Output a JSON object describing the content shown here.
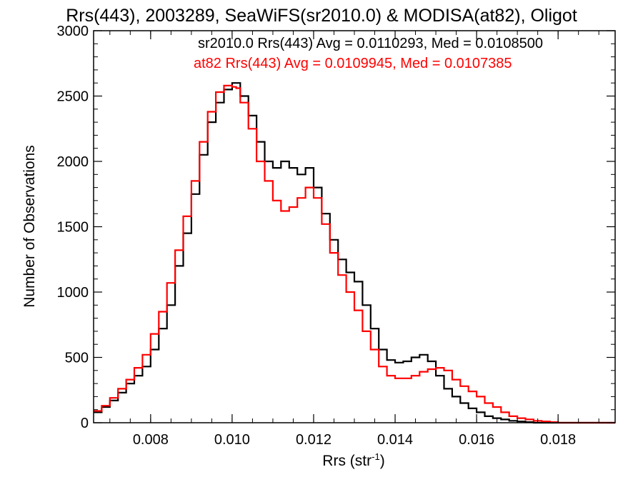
{
  "title": "Rrs(443), 2003289, SeaWiFS(sr2010.0) & MODISA(at82), Oligot",
  "chart_data": {
    "type": "line",
    "title": "Rrs(443), 2003289, SeaWiFS(sr2010.0) & MODISA(at82), Oligot",
    "xlabel": "Rrs (str",
    "xlabel_sup": "-1",
    "xlabel_close": ")",
    "ylabel": "Number of Observations",
    "xlim": [
      0.0066,
      0.0194
    ],
    "ylim": [
      0,
      3000
    ],
    "xticks": [
      0.008,
      0.01,
      0.012,
      0.014,
      0.016,
      0.018
    ],
    "xtick_labels": [
      "0.008",
      "0.010",
      "0.012",
      "0.014",
      "0.016",
      "0.018"
    ],
    "yticks": [
      0,
      500,
      1000,
      1500,
      2000,
      2500,
      3000
    ],
    "ytick_labels": [
      "0",
      "500",
      "1000",
      "1500",
      "2000",
      "2500",
      "3000"
    ],
    "grid": false,
    "step": true,
    "annotations": [
      {
        "text": "sr2010.0 Rrs(443) Avg = 0.0110293, Med = 0.0108500",
        "color": "#000000"
      },
      {
        "text": "at82 Rrs(443) Avg = 0.0109945, Med = 0.0107385",
        "color": "#ff0000"
      }
    ],
    "series": [
      {
        "color": "#000000",
        "x": [
          0.0066,
          0.0068,
          0.007,
          0.0072,
          0.0074,
          0.0076,
          0.0078,
          0.008,
          0.0082,
          0.0084,
          0.0086,
          0.0088,
          0.009,
          0.0092,
          0.0094,
          0.0096,
          0.0098,
          0.01,
          0.0101,
          0.0102,
          0.0104,
          0.0106,
          0.0108,
          0.011,
          0.0112,
          0.0114,
          0.0116,
          0.0118,
          0.012,
          0.0122,
          0.0124,
          0.0126,
          0.0128,
          0.013,
          0.0132,
          0.0134,
          0.0136,
          0.0138,
          0.014,
          0.0142,
          0.0144,
          0.0146,
          0.0148,
          0.015,
          0.0152,
          0.0154,
          0.0156,
          0.0158,
          0.016,
          0.0162,
          0.0164,
          0.0166,
          0.0168,
          0.017,
          0.0172,
          0.0174,
          0.0176,
          0.0178,
          0.018,
          0.0182,
          0.0184,
          0.0186,
          0.0188,
          0.019,
          0.0192,
          0.0194
        ],
        "y": [
          80,
          120,
          170,
          230,
          300,
          360,
          430,
          560,
          720,
          900,
          1200,
          1450,
          1750,
          2050,
          2300,
          2450,
          2550,
          2600,
          2600,
          2500,
          2350,
          2150,
          2000,
          1950,
          2000,
          1950,
          1900,
          1950,
          1800,
          1600,
          1400,
          1250,
          1150,
          1080,
          900,
          720,
          560,
          480,
          460,
          470,
          500,
          520,
          470,
          360,
          260,
          200,
          150,
          110,
          80,
          50,
          35,
          25,
          15,
          10,
          5,
          0,
          0,
          0,
          0,
          0,
          0,
          0,
          0,
          0,
          0,
          0
        ]
      },
      {
        "color": "#ff0000",
        "x": [
          0.0066,
          0.0068,
          0.007,
          0.0072,
          0.0074,
          0.0076,
          0.0078,
          0.008,
          0.0082,
          0.0084,
          0.0086,
          0.0088,
          0.009,
          0.0092,
          0.0094,
          0.0096,
          0.0098,
          0.01,
          0.0101,
          0.0102,
          0.0104,
          0.0106,
          0.0108,
          0.011,
          0.0112,
          0.0114,
          0.0116,
          0.0118,
          0.012,
          0.0122,
          0.0124,
          0.0126,
          0.0128,
          0.013,
          0.0132,
          0.0134,
          0.0136,
          0.0138,
          0.014,
          0.0142,
          0.0144,
          0.0146,
          0.0148,
          0.015,
          0.0152,
          0.0154,
          0.0156,
          0.0158,
          0.016,
          0.0162,
          0.0164,
          0.0166,
          0.0168,
          0.017,
          0.0172,
          0.0174,
          0.0176,
          0.0178,
          0.018,
          0.0182,
          0.0184,
          0.0186,
          0.0188,
          0.019,
          0.0192,
          0.0194
        ],
        "y": [
          90,
          130,
          190,
          260,
          330,
          420,
          520,
          680,
          850,
          1070,
          1320,
          1580,
          1850,
          2150,
          2380,
          2530,
          2580,
          2570,
          2560,
          2450,
          2250,
          2000,
          1850,
          1700,
          1620,
          1650,
          1720,
          1800,
          1720,
          1520,
          1300,
          1130,
          1000,
          860,
          700,
          560,
          430,
          360,
          340,
          340,
          360,
          390,
          410,
          420,
          400,
          330,
          280,
          240,
          200,
          150,
          120,
          80,
          50,
          35,
          25,
          15,
          10,
          5,
          0,
          0,
          0,
          0,
          0,
          0,
          0,
          0
        ]
      }
    ]
  }
}
